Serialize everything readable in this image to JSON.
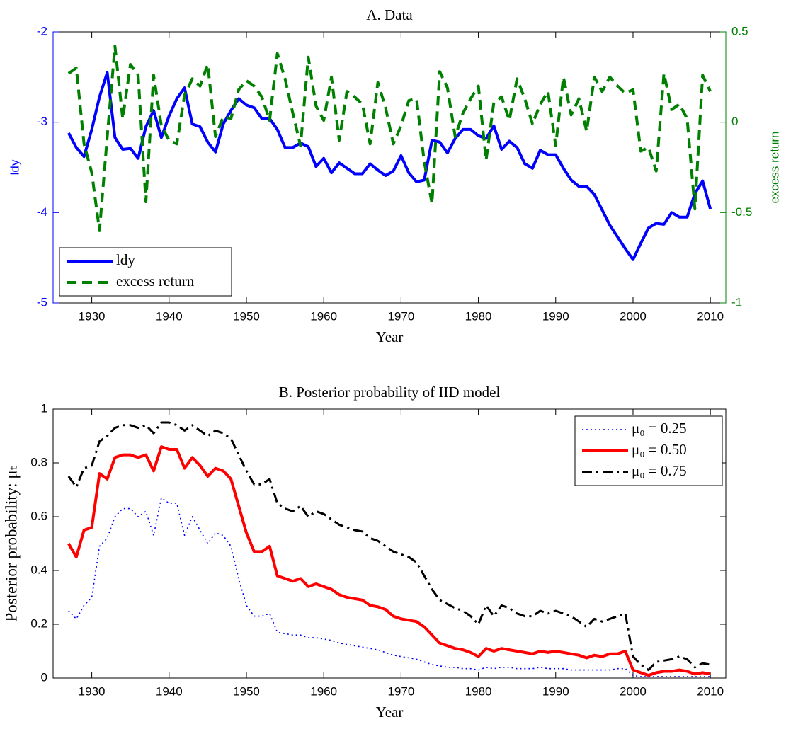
{
  "chart_data": [
    {
      "type": "line",
      "title": "A.   Data",
      "xlabel": "Year",
      "ylabel": "ldy",
      "y2label": "excess return",
      "xlim": [
        1925,
        2012
      ],
      "xticks": [
        1930,
        1940,
        1950,
        1960,
        1970,
        1980,
        1990,
        2000,
        2010
      ],
      "ylim": [
        -5,
        -2
      ],
      "yticks": [
        -5,
        -4,
        -3,
        -2
      ],
      "y2lim": [
        -1,
        0.5
      ],
      "y2ticks": [
        -1,
        -0.5,
        0,
        0.5
      ],
      "legend": "lower left",
      "x": [
        1927,
        1928,
        1929,
        1930,
        1931,
        1932,
        1933,
        1934,
        1935,
        1936,
        1937,
        1938,
        1939,
        1940,
        1941,
        1942,
        1943,
        1944,
        1945,
        1946,
        1947,
        1948,
        1949,
        1950,
        1951,
        1952,
        1953,
        1954,
        1955,
        1956,
        1957,
        1958,
        1959,
        1960,
        1961,
        1962,
        1963,
        1964,
        1965,
        1966,
        1967,
        1968,
        1969,
        1970,
        1971,
        1972,
        1973,
        1974,
        1975,
        1976,
        1977,
        1978,
        1979,
        1980,
        1981,
        1982,
        1983,
        1984,
        1985,
        1986,
        1987,
        1988,
        1989,
        1990,
        1991,
        1992,
        1993,
        1994,
        1995,
        1996,
        1997,
        1998,
        1999,
        2000,
        2001,
        2002,
        2003,
        2004,
        2005,
        2006,
        2007,
        2008,
        2009,
        2010
      ],
      "series": [
        {
          "name": "ldy",
          "color": "#0000ff",
          "linestyle": "solid",
          "axis": "y",
          "values": [
            -3.12,
            -3.28,
            -3.38,
            -3.08,
            -2.72,
            -2.45,
            -3.17,
            -3.3,
            -3.29,
            -3.4,
            -3.05,
            -2.87,
            -3.17,
            -2.93,
            -2.74,
            -2.62,
            -3.02,
            -3.05,
            -3.22,
            -3.33,
            -3.02,
            -2.87,
            -2.74,
            -2.81,
            -2.84,
            -2.96,
            -2.96,
            -3.08,
            -3.28,
            -3.28,
            -3.23,
            -3.27,
            -3.49,
            -3.4,
            -3.56,
            -3.45,
            -3.51,
            -3.57,
            -3.57,
            -3.46,
            -3.53,
            -3.59,
            -3.54,
            -3.37,
            -3.56,
            -3.66,
            -3.64,
            -3.2,
            -3.22,
            -3.34,
            -3.18,
            -3.08,
            -3.08,
            -3.15,
            -3.18,
            -3.04,
            -3.3,
            -3.21,
            -3.28,
            -3.46,
            -3.51,
            -3.31,
            -3.36,
            -3.36,
            -3.51,
            -3.64,
            -3.71,
            -3.71,
            -3.8,
            -3.97,
            -4.14,
            -4.27,
            -4.4,
            -4.52,
            -4.34,
            -4.17,
            -4.12,
            -4.13,
            -4.0,
            -4.05,
            -4.05,
            -3.79,
            -3.65,
            -3.96
          ]
        },
        {
          "name": "excess return",
          "color": "#008000",
          "linestyle": "dashed",
          "axis": "y2",
          "values": [
            0.27,
            0.3,
            -0.12,
            -0.28,
            -0.6,
            -0.08,
            0.42,
            0.02,
            0.32,
            0.26,
            -0.44,
            0.26,
            -0.02,
            -0.1,
            -0.12,
            0.15,
            0.24,
            0.2,
            0.32,
            -0.08,
            0.03,
            0.02,
            0.18,
            0.23,
            0.2,
            0.14,
            0.01,
            0.38,
            0.24,
            0.05,
            -0.13,
            0.36,
            0.09,
            0.01,
            0.25,
            -0.1,
            0.17,
            0.14,
            0.1,
            -0.12,
            0.22,
            0.08,
            -0.12,
            -0.02,
            0.12,
            0.13,
            -0.22,
            -0.45,
            0.28,
            0.19,
            -0.08,
            0.05,
            0.13,
            0.2,
            -0.21,
            0.11,
            0.14,
            0.01,
            0.24,
            0.13,
            -0.01,
            0.1,
            0.17,
            -0.13,
            0.25,
            0.04,
            0.13,
            -0.05,
            0.25,
            0.17,
            0.25,
            0.2,
            0.16,
            0.18,
            -0.16,
            -0.14,
            -0.27,
            0.27,
            0.07,
            0.1,
            0.02,
            -0.48,
            0.26,
            0.17
          ]
        }
      ]
    },
    {
      "type": "line",
      "title": "B.   Posterior probability of IID model",
      "xlabel": "Year",
      "ylabel": "Posterior probability:  μₜ",
      "xlim": [
        1925,
        2012
      ],
      "xticks": [
        1930,
        1940,
        1950,
        1960,
        1970,
        1980,
        1990,
        2000,
        2010
      ],
      "ylim": [
        0,
        1
      ],
      "yticks": [
        0,
        0.2,
        0.4,
        0.6,
        0.8,
        1
      ],
      "legend": "upper right",
      "x": [
        1927,
        1928,
        1929,
        1930,
        1931,
        1932,
        1933,
        1934,
        1935,
        1936,
        1937,
        1938,
        1939,
        1940,
        1941,
        1942,
        1943,
        1944,
        1945,
        1946,
        1947,
        1948,
        1949,
        1950,
        1951,
        1952,
        1953,
        1954,
        1955,
        1956,
        1957,
        1958,
        1959,
        1960,
        1961,
        1962,
        1963,
        1964,
        1965,
        1966,
        1967,
        1968,
        1969,
        1970,
        1971,
        1972,
        1973,
        1974,
        1975,
        1976,
        1977,
        1978,
        1979,
        1980,
        1981,
        1982,
        1983,
        1984,
        1985,
        1986,
        1987,
        1988,
        1989,
        1990,
        1991,
        1992,
        1993,
        1994,
        1995,
        1996,
        1997,
        1998,
        1999,
        2000,
        2001,
        2002,
        2003,
        2004,
        2005,
        2006,
        2007,
        2008,
        2009,
        2010
      ],
      "series": [
        {
          "name": "μ₀ = 0.25",
          "color": "#0000ff",
          "linestyle": "dotted",
          "values": [
            0.25,
            0.22,
            0.27,
            0.3,
            0.49,
            0.52,
            0.6,
            0.63,
            0.63,
            0.6,
            0.62,
            0.53,
            0.67,
            0.65,
            0.65,
            0.53,
            0.6,
            0.55,
            0.5,
            0.54,
            0.53,
            0.49,
            0.37,
            0.27,
            0.23,
            0.23,
            0.24,
            0.17,
            0.165,
            0.16,
            0.16,
            0.15,
            0.15,
            0.145,
            0.14,
            0.13,
            0.125,
            0.12,
            0.115,
            0.11,
            0.105,
            0.095,
            0.085,
            0.08,
            0.075,
            0.07,
            0.06,
            0.05,
            0.045,
            0.04,
            0.04,
            0.035,
            0.035,
            0.03,
            0.04,
            0.035,
            0.04,
            0.04,
            0.035,
            0.035,
            0.035,
            0.04,
            0.035,
            0.035,
            0.035,
            0.03,
            0.03,
            0.03,
            0.03,
            0.03,
            0.03,
            0.035,
            0.035,
            0.01,
            0.005,
            0.005,
            0.005,
            0.005,
            0.005,
            0.005,
            0.005,
            0.005,
            0.005,
            0.005
          ]
        },
        {
          "name": "μ₀ = 0.50",
          "color": "#ff0000",
          "linestyle": "solid",
          "values": [
            0.5,
            0.45,
            0.55,
            0.56,
            0.76,
            0.74,
            0.82,
            0.83,
            0.83,
            0.82,
            0.83,
            0.77,
            0.86,
            0.85,
            0.85,
            0.78,
            0.82,
            0.79,
            0.75,
            0.78,
            0.77,
            0.74,
            0.64,
            0.54,
            0.47,
            0.47,
            0.49,
            0.38,
            0.37,
            0.36,
            0.37,
            0.34,
            0.35,
            0.34,
            0.33,
            0.31,
            0.3,
            0.295,
            0.29,
            0.27,
            0.265,
            0.255,
            0.23,
            0.22,
            0.215,
            0.21,
            0.19,
            0.16,
            0.13,
            0.12,
            0.11,
            0.105,
            0.095,
            0.08,
            0.11,
            0.1,
            0.11,
            0.105,
            0.1,
            0.095,
            0.09,
            0.1,
            0.095,
            0.1,
            0.095,
            0.09,
            0.085,
            0.075,
            0.085,
            0.08,
            0.09,
            0.09,
            0.1,
            0.03,
            0.02,
            0.01,
            0.02,
            0.025,
            0.025,
            0.03,
            0.025,
            0.015,
            0.02,
            0.015
          ]
        },
        {
          "name": "μ₀ = 0.75",
          "color": "#000000",
          "linestyle": "dashdot",
          "values": [
            0.75,
            0.71,
            0.78,
            0.79,
            0.88,
            0.9,
            0.93,
            0.94,
            0.94,
            0.93,
            0.94,
            0.91,
            0.95,
            0.95,
            0.94,
            0.92,
            0.94,
            0.92,
            0.9,
            0.92,
            0.91,
            0.89,
            0.83,
            0.77,
            0.72,
            0.72,
            0.74,
            0.65,
            0.63,
            0.62,
            0.64,
            0.6,
            0.62,
            0.61,
            0.59,
            0.57,
            0.56,
            0.55,
            0.545,
            0.52,
            0.51,
            0.49,
            0.47,
            0.46,
            0.45,
            0.43,
            0.38,
            0.33,
            0.29,
            0.275,
            0.26,
            0.25,
            0.23,
            0.2,
            0.27,
            0.23,
            0.27,
            0.26,
            0.24,
            0.23,
            0.23,
            0.25,
            0.24,
            0.25,
            0.24,
            0.23,
            0.21,
            0.19,
            0.22,
            0.21,
            0.22,
            0.23,
            0.24,
            0.08,
            0.05,
            0.03,
            0.06,
            0.065,
            0.07,
            0.08,
            0.07,
            0.04,
            0.055,
            0.05
          ]
        }
      ]
    }
  ]
}
